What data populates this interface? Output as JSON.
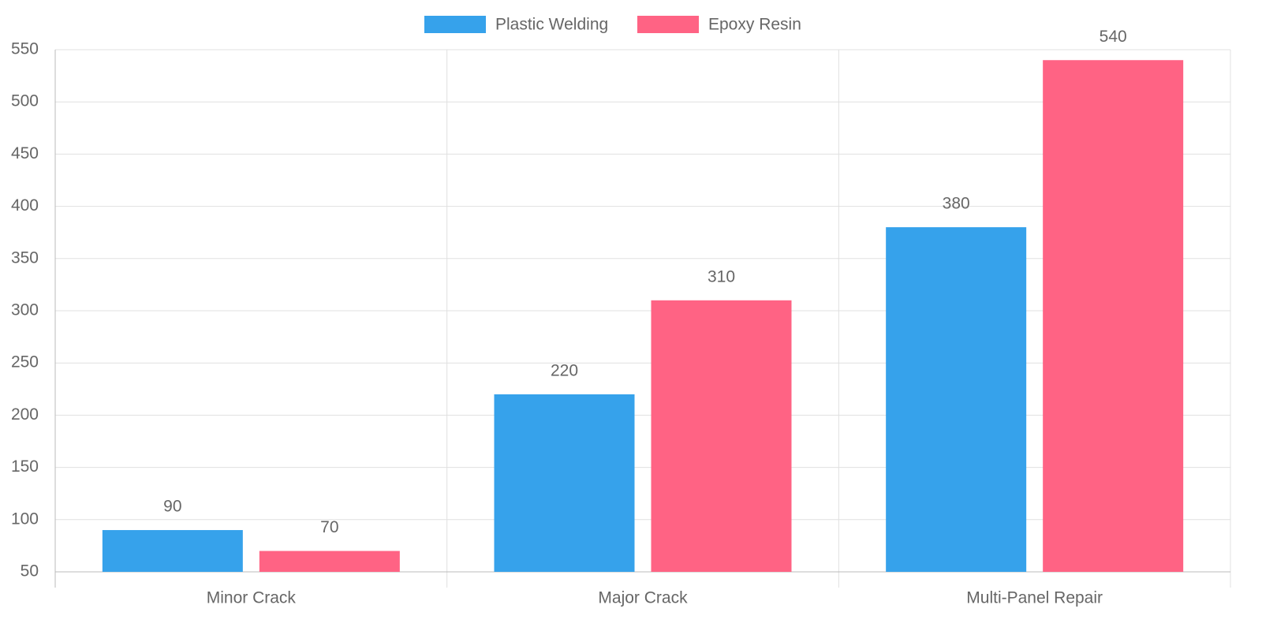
{
  "chart_data": {
    "type": "bar",
    "categories": [
      "Minor Crack",
      "Major Crack",
      "Multi-Panel Repair"
    ],
    "series": [
      {
        "name": "Plastic Welding",
        "color": "#36a2eb",
        "values": [
          90,
          220,
          380
        ]
      },
      {
        "name": "Epoxy Resin",
        "color": "#ff6384",
        "values": [
          70,
          310,
          540
        ]
      }
    ],
    "ylim": [
      50,
      550
    ],
    "yticks": [
      50,
      100,
      150,
      200,
      250,
      300,
      350,
      400,
      450,
      500,
      550
    ],
    "grid": true,
    "legend": "top"
  }
}
